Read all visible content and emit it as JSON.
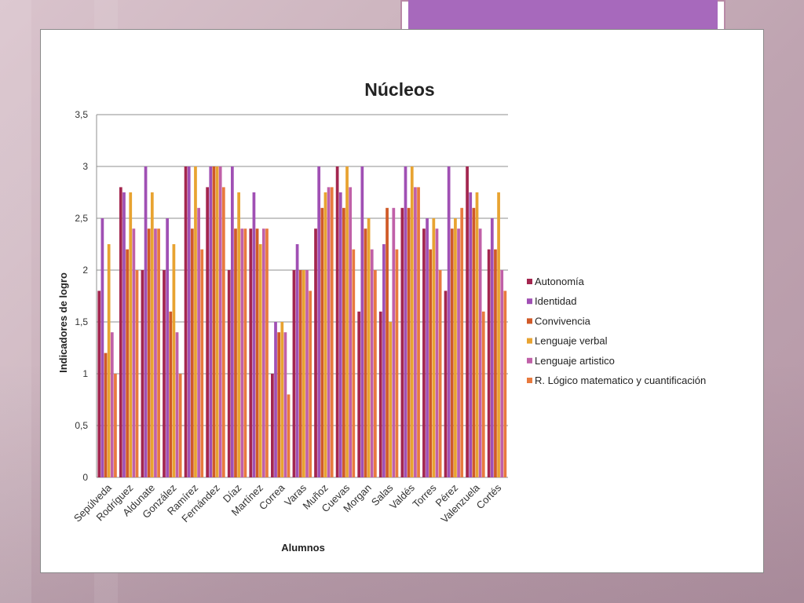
{
  "chart_data": {
    "type": "bar",
    "title": "Núcleos",
    "xlabel": "Alumnos",
    "ylabel": "Indicadores de logro",
    "ylim": [
      0,
      3.5
    ],
    "yticks": [
      "0",
      "0,5",
      "1",
      "1,5",
      "2",
      "2,5",
      "3",
      "3,5"
    ],
    "grid": true,
    "legend_position": "right",
    "categories": [
      "Sepúlveda",
      "Rodríguez",
      "Aldunate",
      "González",
      "Ramírez",
      "Fernández",
      "Díaz",
      "Martínez",
      "Correa",
      "Varas",
      "Muñoz",
      "Cuevas",
      "Morgan",
      "Salas",
      "Valdés",
      "Torres",
      "Pérez",
      "Valenzuela",
      "Cortés"
    ],
    "series": [
      {
        "name": "Autonomía",
        "color": "#a3264f",
        "values": [
          1.8,
          2.8,
          2.0,
          2.0,
          3.0,
          2.8,
          2.0,
          2.4,
          1.0,
          2.0,
          2.4,
          3.0,
          1.6,
          1.6,
          2.6,
          2.4,
          1.8,
          3.0,
          2.2
        ]
      },
      {
        "name": "Identidad",
        "color": "#a050b4",
        "values": [
          2.5,
          2.75,
          3.0,
          2.5,
          3.0,
          3.0,
          3.0,
          2.75,
          1.5,
          2.25,
          3.0,
          2.75,
          3.0,
          2.25,
          3.0,
          2.5,
          3.0,
          2.75,
          2.5
        ]
      },
      {
        "name": "Convivencia",
        "color": "#d05a28",
        "values": [
          1.2,
          2.2,
          2.4,
          1.6,
          2.4,
          3.0,
          2.4,
          2.4,
          1.4,
          2.0,
          2.6,
          2.6,
          2.4,
          2.6,
          2.6,
          2.2,
          2.4,
          2.6,
          2.2
        ]
      },
      {
        "name": "Lenguaje verbal",
        "color": "#e8a331",
        "values": [
          2.25,
          2.75,
          2.75,
          2.25,
          3.0,
          3.0,
          2.75,
          2.25,
          1.5,
          2.0,
          2.75,
          3.0,
          2.5,
          1.5,
          3.0,
          2.5,
          2.5,
          2.75,
          2.75
        ]
      },
      {
        "name": "Lenguaje artistico",
        "color": "#c060a8",
        "values": [
          1.4,
          2.4,
          2.4,
          1.4,
          2.6,
          3.0,
          2.4,
          2.4,
          1.4,
          2.0,
          2.8,
          2.8,
          2.2,
          2.6,
          2.8,
          2.4,
          2.4,
          2.4,
          2.0
        ]
      },
      {
        "name": "R. Lógico matematico y cuantificación",
        "color": "#e87a3e",
        "values": [
          1.0,
          2.0,
          2.4,
          1.0,
          2.2,
          2.8,
          2.4,
          2.4,
          0.8,
          1.8,
          2.8,
          2.2,
          2.0,
          2.2,
          2.8,
          2.0,
          2.6,
          1.6,
          1.8
        ]
      }
    ]
  }
}
